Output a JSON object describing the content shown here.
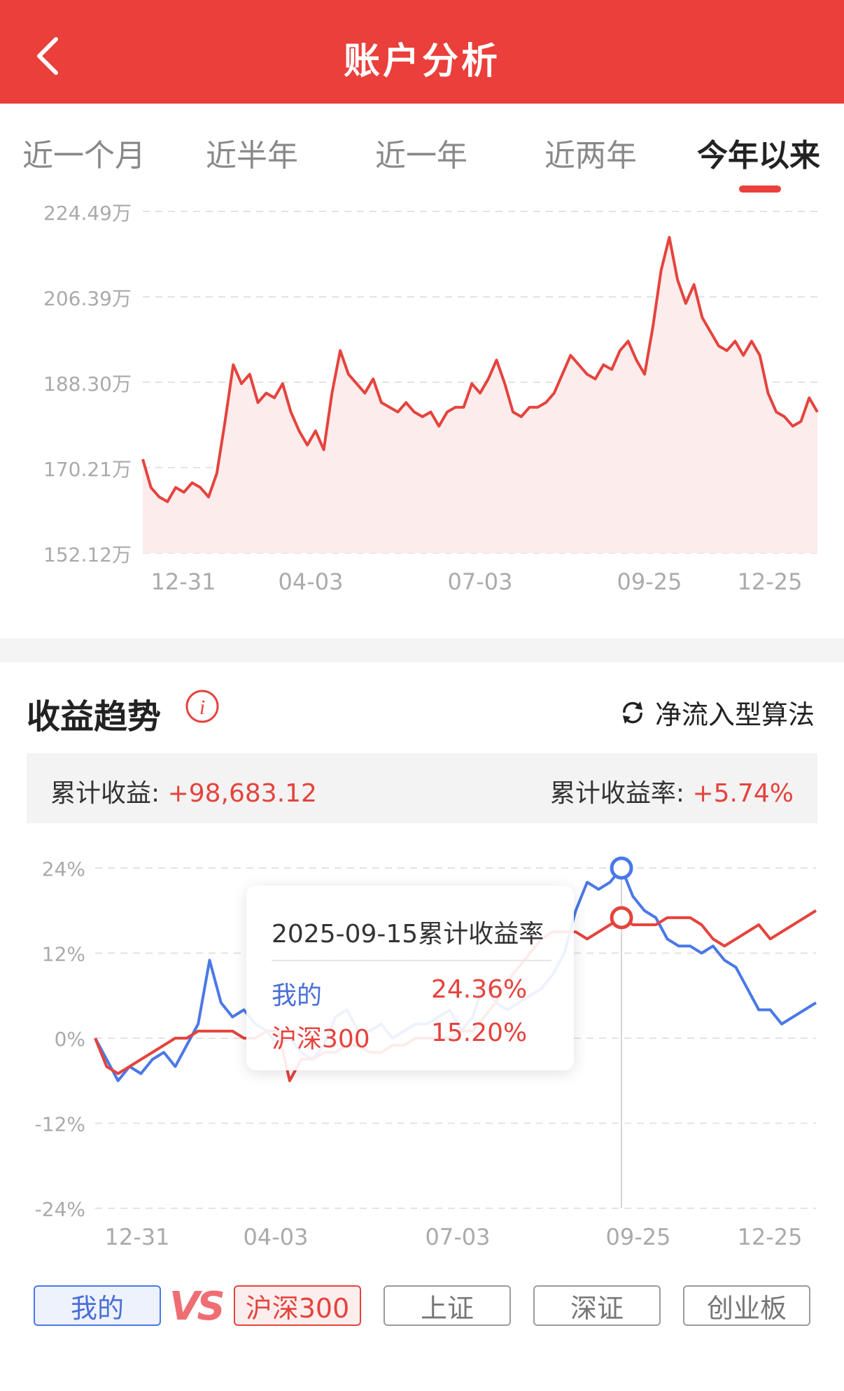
{
  "header": {
    "title": "账户分析"
  },
  "tabs": [
    {
      "label": "近一个月",
      "active": false
    },
    {
      "label": "近半年",
      "active": false
    },
    {
      "label": "近一年",
      "active": false
    },
    {
      "label": "近两年",
      "active": false
    },
    {
      "label": "今年以来",
      "active": true
    }
  ],
  "colors": {
    "brand_red": "#ea3f3a",
    "mine_blue": "#4a78e8",
    "benchmark_red": "#e5433d",
    "area_fill": "#fdecec"
  },
  "asset_chart": {
    "y_ticks": [
      "224.49万",
      "206.39万",
      "188.30万",
      "170.21万",
      "152.12万"
    ],
    "x_ticks": [
      "12-31",
      "04-03",
      "07-03",
      "09-25",
      "12-25"
    ]
  },
  "trend": {
    "title": "收益趋势",
    "algo_label": "净流入型算法",
    "cum_profit_label": "累计收益: ",
    "cum_profit_value": "+98,683.12",
    "cum_rate_label": "累计收益率: ",
    "cum_rate_value": "+5.74%",
    "y_ticks": [
      "24%",
      "12%",
      "0%",
      "-12%",
      "-24%"
    ],
    "x_ticks": [
      "12-31",
      "04-03",
      "07-03",
      "09-25",
      "12-25"
    ],
    "tooltip": {
      "title": "2025-09-15累计收益率",
      "mine_label": "我的",
      "mine_value": "24.36%",
      "bench_label": "沪深300",
      "bench_value": "15.20%"
    }
  },
  "compare": {
    "mine": "我的",
    "vs": "VS",
    "options": [
      "沪深300",
      "上证",
      "深证",
      "创业板"
    ]
  },
  "chart_data": [
    {
      "type": "area",
      "title": "",
      "ylim": [
        152.12,
        224.49
      ],
      "x_ticks": [
        "12-31",
        "04-03",
        "07-03",
        "09-25",
        "12-25"
      ],
      "series": [
        {
          "values": [
            172,
            166,
            164,
            163,
            166,
            165,
            167,
            166,
            164,
            169,
            180,
            192,
            188,
            190,
            184,
            186,
            185,
            188,
            182,
            178,
            175,
            178,
            174,
            186,
            195,
            190,
            188,
            186,
            189,
            184,
            183,
            182,
            184,
            182,
            181,
            182,
            179,
            182,
            183,
            183,
            188,
            186,
            189,
            193,
            188,
            182,
            181,
            183,
            183,
            184,
            186,
            190,
            194,
            192,
            190,
            189,
            192,
            191,
            195,
            197,
            193,
            190,
            200,
            212,
            219,
            210,
            205,
            209,
            202,
            199,
            196,
            195,
            197,
            194,
            197,
            194,
            186,
            182,
            181,
            179,
            180,
            185,
            182
          ]
        }
      ]
    },
    {
      "type": "line",
      "title": "",
      "ylim": [
        -24,
        24
      ],
      "x_ticks": [
        "12-31",
        "04-03",
        "07-03",
        "09-25",
        "12-25"
      ],
      "series": [
        {
          "name": "我的",
          "values": [
            0,
            -3,
            -6,
            -4,
            -5,
            -3,
            -2,
            -4,
            -1,
            2,
            11,
            5,
            3,
            4,
            2,
            1,
            -1,
            0,
            -2,
            -3,
            -1,
            3,
            4,
            1,
            1,
            2,
            0,
            1,
            2,
            2,
            3,
            4,
            1,
            3,
            8,
            5,
            4,
            5,
            6,
            7,
            9,
            12,
            18,
            22,
            21,
            22,
            24,
            20,
            18,
            17,
            14,
            13,
            13,
            12,
            13,
            11,
            10,
            7,
            4,
            4,
            2,
            3,
            4,
            5
          ]
        },
        {
          "name": "沪深300",
          "values": [
            0,
            -4,
            -5,
            -4,
            -3,
            -2,
            -1,
            0,
            0,
            1,
            1,
            1,
            1,
            0,
            0,
            1,
            1,
            -6,
            -3,
            -3,
            -2,
            -2,
            -1,
            -1,
            -2,
            -2,
            -1,
            -1,
            0,
            0,
            0,
            0,
            1,
            1,
            3,
            5,
            8,
            10,
            12,
            14,
            15,
            15,
            15,
            14,
            15,
            16,
            17,
            16,
            16,
            16,
            17,
            17,
            17,
            16,
            14,
            13,
            14,
            15,
            16,
            14,
            15,
            16,
            17,
            18
          ]
        }
      ]
    }
  ]
}
